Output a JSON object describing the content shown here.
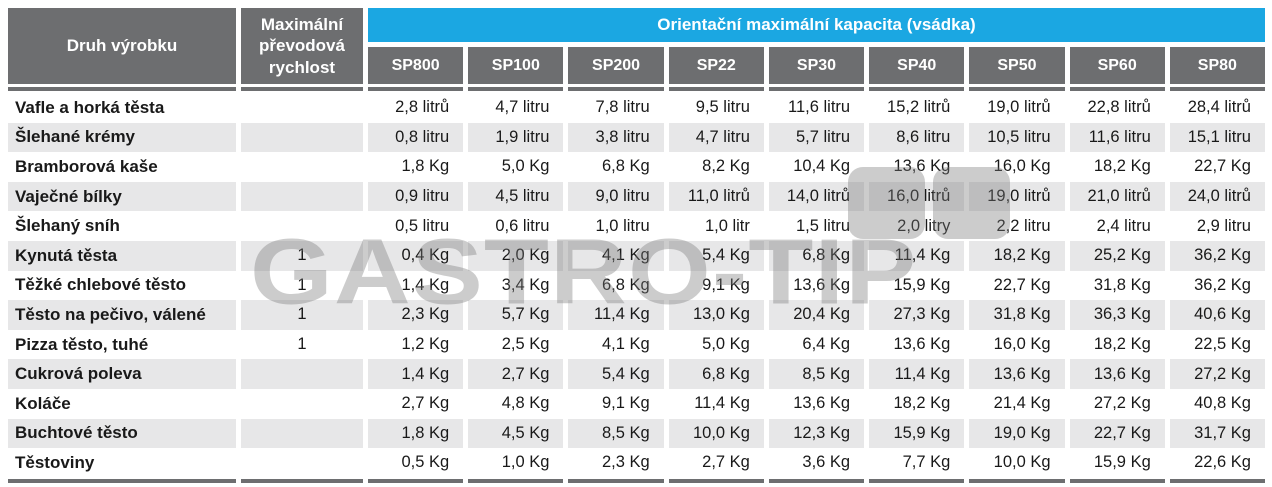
{
  "table": {
    "col1_header": "Druh výrobku",
    "col2_header": "Maximální převodová rychlost",
    "capacity_header": "Orientační maximální kapacita (vsádka)",
    "model_headers": [
      "SP800",
      "SP100",
      "SP200",
      "SP22",
      "SP30",
      "SP40",
      "SP50",
      "SP60",
      "SP80"
    ],
    "rows": [
      {
        "product": "Vafle a horká těsta",
        "speed": "",
        "values": [
          "2,8 litrů",
          "4,7 litru",
          "7,8 litru",
          "9,5 litru",
          "11,6 litru",
          "15,2 litrů",
          "19,0 litrů",
          "22,8 litrů",
          "28,4 litrů"
        ]
      },
      {
        "product": "Šlehané krémy",
        "speed": "",
        "values": [
          "0,8 litru",
          "1,9 litru",
          "3,8 litru",
          "4,7 litru",
          "5,7 litru",
          "8,6 litru",
          "10,5 litru",
          "11,6 litru",
          "15,1 litru"
        ]
      },
      {
        "product": "Bramborová kaše",
        "speed": "",
        "values": [
          "1,8 Kg",
          "5,0 Kg",
          "6,8 Kg",
          "8,2 Kg",
          "10,4 Kg",
          "13,6 Kg",
          "16,0 Kg",
          "18,2 Kg",
          "22,7 Kg"
        ]
      },
      {
        "product": "Vaječné bílky",
        "speed": "",
        "values": [
          "0,9 litru",
          "4,5 litru",
          "9,0 litru",
          "11,0 litrů",
          "14,0 litrů",
          "16,0 litrů",
          "19,0 litrů",
          "21,0 litrů",
          "24,0 litrů"
        ]
      },
      {
        "product": "Šlehaný sníh",
        "speed": "",
        "values": [
          "0,5 litru",
          "0,6 litru",
          "1,0 litru",
          "1,0 litr",
          "1,5 litru",
          "2,0 litry",
          "2,2 litru",
          "2,4 litru",
          "2,9 litru"
        ]
      },
      {
        "product": "Kynutá těsta",
        "speed": "1",
        "values": [
          "0,4 Kg",
          "2,0 Kg",
          "4,1 Kg",
          "5,4 Kg",
          "6,8 Kg",
          "11,4 Kg",
          "18,2 Kg",
          "25,2 Kg",
          "36,2 Kg"
        ]
      },
      {
        "product": "Těžké chlebové těsto",
        "speed": "1",
        "values": [
          "1,4 Kg",
          "3,4 Kg",
          "6,8 Kg",
          "9,1 Kg",
          "13,6 Kg",
          "15,9 Kg",
          "22,7 Kg",
          "31,8 Kg",
          "36,2 Kg"
        ]
      },
      {
        "product": "Těsto na pečivo, válené",
        "speed": "1",
        "values": [
          "2,3 Kg",
          "5,7 Kg",
          "11,4 Kg",
          "13,0 Kg",
          "20,4 Kg",
          "27,3 Kg",
          "31,8 Kg",
          "36,3 Kg",
          "40,6 Kg"
        ]
      },
      {
        "product": "Pizza těsto, tuhé",
        "speed": "1",
        "values": [
          "1,2 Kg",
          "2,5 Kg",
          "4,1 Kg",
          "5,0 Kg",
          "6,4 Kg",
          "13,6 Kg",
          "16,0 Kg",
          "18,2 Kg",
          "22,5 Kg"
        ]
      },
      {
        "product": "Cukrová poleva",
        "speed": "",
        "values": [
          "1,4 Kg",
          "2,7 Kg",
          "5,4 Kg",
          "6,8 Kg",
          "8,5 Kg",
          "11,4 Kg",
          "13,6 Kg",
          "13,6 Kg",
          "27,2 Kg"
        ]
      },
      {
        "product": "Koláče",
        "speed": "",
        "values": [
          "2,7 Kg",
          "4,8 Kg",
          "9,1 Kg",
          "11,4 Kg",
          "13,6 Kg",
          "18,2 Kg",
          "21,4 Kg",
          "27,2 Kg",
          "40,8 Kg"
        ]
      },
      {
        "product": "Buchtové těsto",
        "speed": "",
        "values": [
          "1,8 Kg",
          "4,5 Kg",
          "8,5 Kg",
          "10,0 Kg",
          "12,3 Kg",
          "15,9 Kg",
          "19,0 Kg",
          "22,7 Kg",
          "31,7 Kg"
        ]
      },
      {
        "product": "Těstoviny",
        "speed": "",
        "values": [
          "0,5 Kg",
          "1,0 Kg",
          "2,3 Kg",
          "2,7 Kg",
          "3,6 Kg",
          "7,7 Kg",
          "10,0 Kg",
          "15,9 Kg",
          "22,6 Kg"
        ]
      }
    ]
  },
  "watermark": {
    "text": "GASTRO-TIP"
  },
  "colors": {
    "accent_cyan": "#1ba7e2",
    "header_gray": "#6d6e70",
    "row_alt_gray": "#e7e7e8",
    "text_dark": "#191919"
  }
}
